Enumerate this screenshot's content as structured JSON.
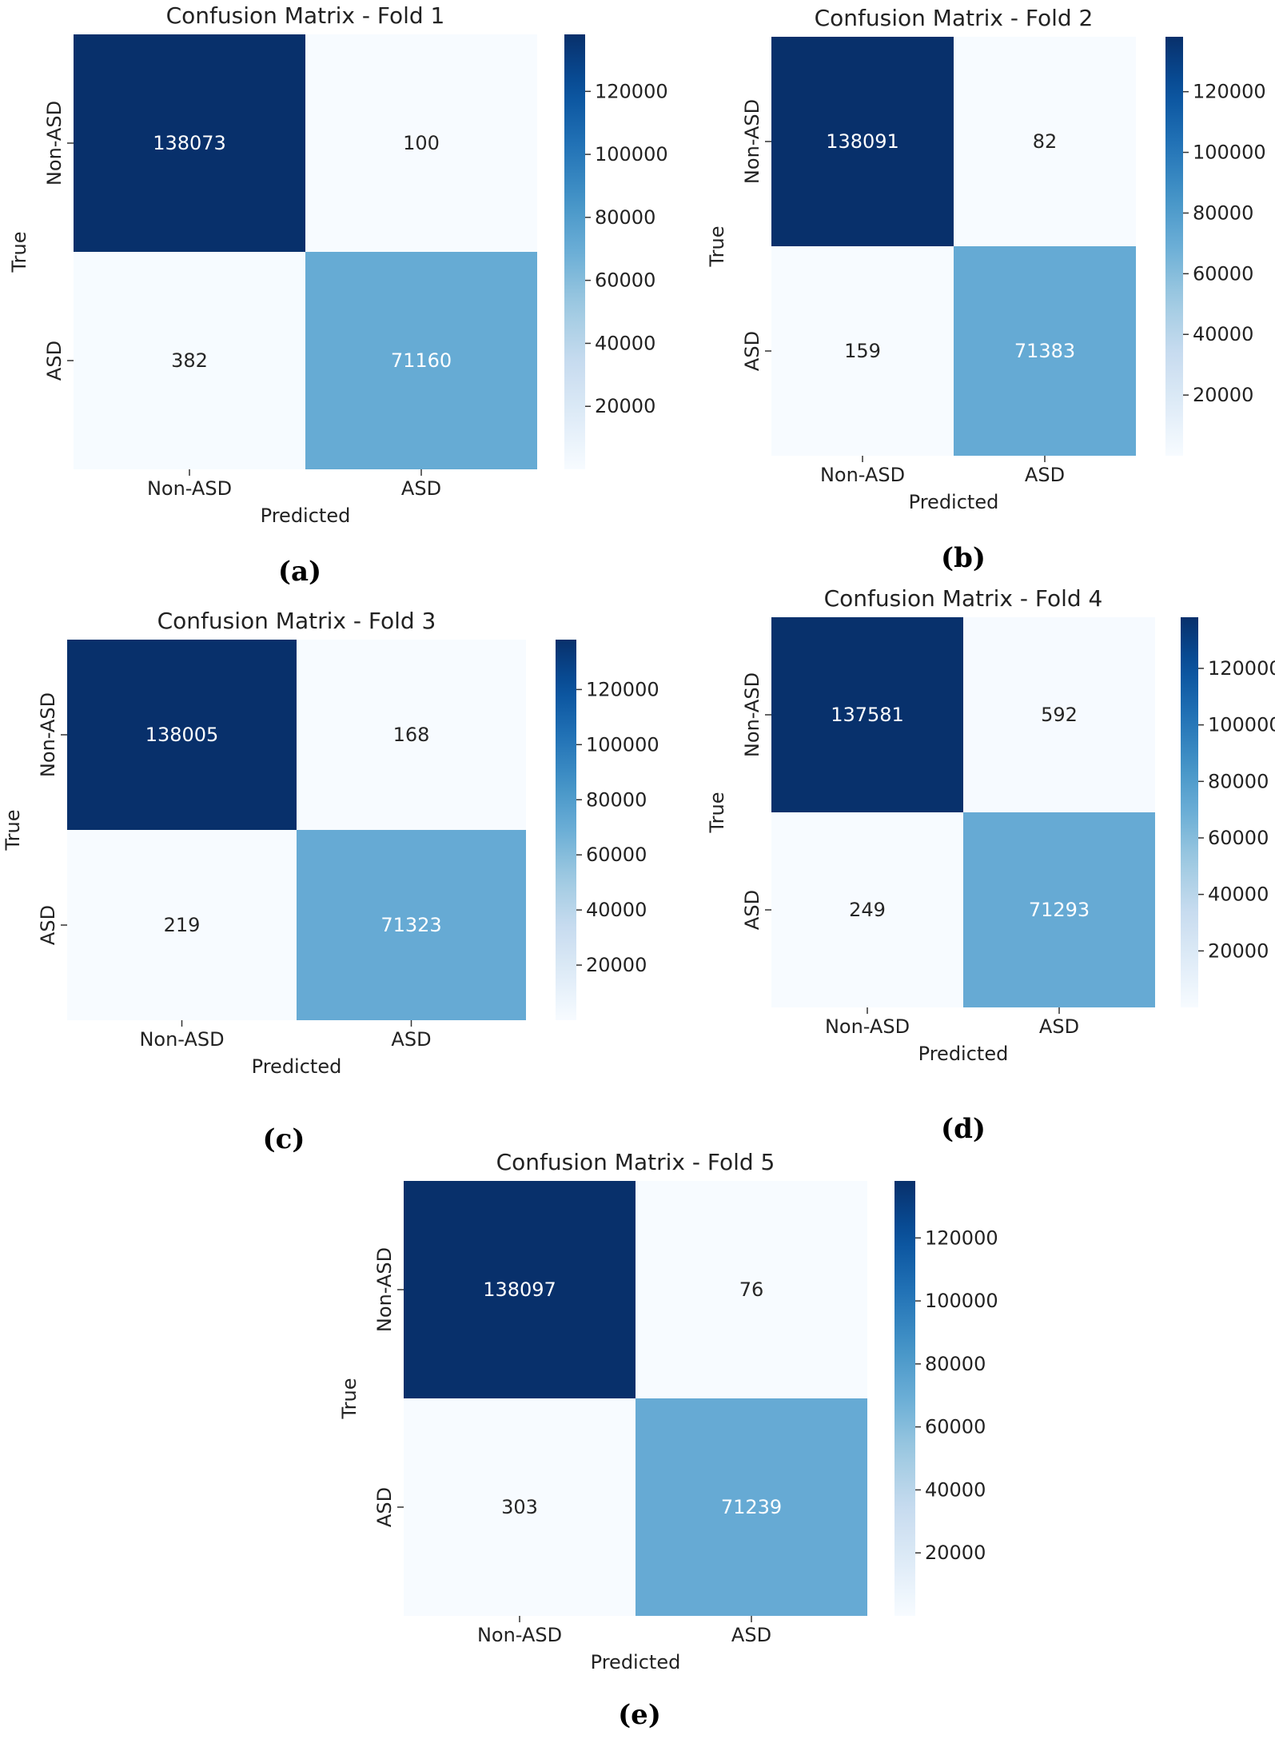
{
  "colorbar": {
    "min": 0,
    "max": 138100,
    "ticks": [
      20000,
      40000,
      60000,
      80000,
      100000,
      120000
    ]
  },
  "labels": {
    "xlabel": "Predicted",
    "ylabel": "True",
    "classes": [
      "Non-ASD",
      "ASD"
    ]
  },
  "chart_data": [
    {
      "type": "heatmap",
      "title": "Confusion Matrix - Fold 1",
      "xlabel": "Predicted",
      "ylabel": "True",
      "x_categories": [
        "Non-ASD",
        "ASD"
      ],
      "y_categories": [
        "Non-ASD",
        "ASD"
      ],
      "matrix": [
        [
          138073,
          100
        ],
        [
          382,
          71160
        ]
      ],
      "caption": "(a)"
    },
    {
      "type": "heatmap",
      "title": "Confusion Matrix - Fold 2",
      "xlabel": "Predicted",
      "ylabel": "True",
      "x_categories": [
        "Non-ASD",
        "ASD"
      ],
      "y_categories": [
        "Non-ASD",
        "ASD"
      ],
      "matrix": [
        [
          138091,
          82
        ],
        [
          159,
          71383
        ]
      ],
      "caption": "(b)"
    },
    {
      "type": "heatmap",
      "title": "Confusion Matrix - Fold 3",
      "xlabel": "Predicted",
      "ylabel": "True",
      "x_categories": [
        "Non-ASD",
        "ASD"
      ],
      "y_categories": [
        "Non-ASD",
        "ASD"
      ],
      "matrix": [
        [
          138005,
          168
        ],
        [
          219,
          71323
        ]
      ],
      "caption": "(c)"
    },
    {
      "type": "heatmap",
      "title": "Confusion Matrix - Fold 4",
      "xlabel": "Predicted",
      "ylabel": "True",
      "x_categories": [
        "Non-ASD",
        "ASD"
      ],
      "y_categories": [
        "Non-ASD",
        "ASD"
      ],
      "matrix": [
        [
          137581,
          592
        ],
        [
          249,
          71293
        ]
      ],
      "caption": "(d)"
    },
    {
      "type": "heatmap",
      "title": "Confusion Matrix - Fold 5",
      "xlabel": "Predicted",
      "ylabel": "True",
      "x_categories": [
        "Non-ASD",
        "ASD"
      ],
      "y_categories": [
        "Non-ASD",
        "ASD"
      ],
      "matrix": [
        [
          138097,
          76
        ],
        [
          303,
          71239
        ]
      ],
      "caption": "(e)"
    }
  ]
}
